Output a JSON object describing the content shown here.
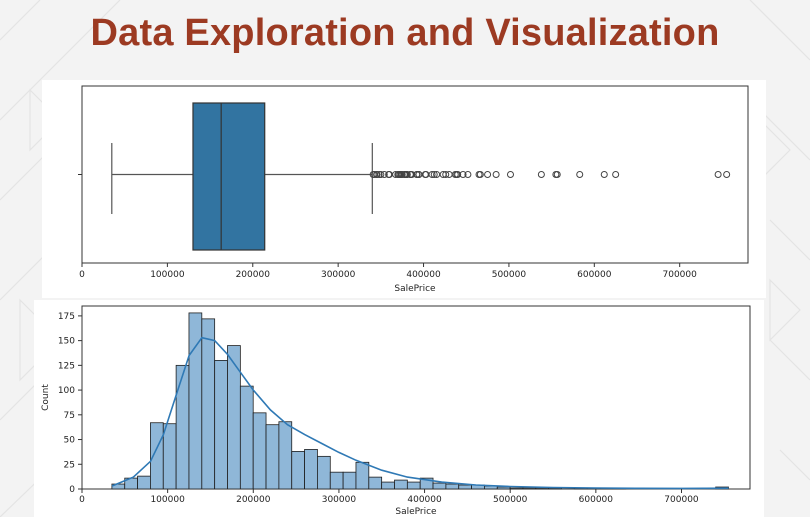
{
  "slide": {
    "title": "Data Exploration and Visualization"
  },
  "colors": {
    "title": "#9c3a22",
    "box_fill": "#3274a1",
    "hist_fill": "#8fb7d8",
    "hist_edge": "#1f1f1f",
    "kde_line": "#2f79b5"
  },
  "chart_data": [
    {
      "type": "box",
      "xlabel": "SalePrice",
      "xlim": [
        0,
        780000
      ],
      "xticks": [
        {
          "value": 0,
          "label": "0"
        },
        {
          "value": 100000,
          "label": "100000"
        },
        {
          "value": 200000,
          "label": "200000"
        },
        {
          "value": 300000,
          "label": "300000"
        },
        {
          "value": 400000,
          "label": "400000"
        },
        {
          "value": 500000,
          "label": "500000"
        },
        {
          "value": 600000,
          "label": "600000"
        },
        {
          "value": 700000,
          "label": "700000"
        }
      ],
      "whisker_low": 34900,
      "q1": 129975,
      "median": 163000,
      "q3": 214000,
      "whisker_high": 340000,
      "outliers": [
        341000,
        342643,
        345000,
        345474,
        348000,
        350000,
        354000,
        359100,
        360000,
        367294,
        369900,
        370878,
        372402,
        372500,
        374000,
        375000,
        377426,
        378500,
        380000,
        381000,
        384500,
        385000,
        386250,
        392000,
        392500,
        394432,
        394617,
        402000,
        402861,
        410000,
        412500,
        415298,
        423000,
        426000,
        430000,
        437154,
        438780,
        440000,
        446261,
        451950,
        465000,
        466500,
        475000,
        485000,
        501837,
        538000,
        555000,
        556581,
        582933,
        611657,
        625000,
        745000,
        755000
      ],
      "grid": false
    },
    {
      "type": "histogram",
      "xlabel": "SalePrice",
      "ylabel": "Count",
      "xlim": [
        0,
        780000
      ],
      "ylim": [
        0,
        185
      ],
      "xticks": [
        {
          "value": 0,
          "label": "0"
        },
        {
          "value": 100000,
          "label": "100000"
        },
        {
          "value": 200000,
          "label": "200000"
        },
        {
          "value": 300000,
          "label": "300000"
        },
        {
          "value": 400000,
          "label": "400000"
        },
        {
          "value": 500000,
          "label": "500000"
        },
        {
          "value": 600000,
          "label": "600000"
        },
        {
          "value": 700000,
          "label": "700000"
        }
      ],
      "yticks": [
        0,
        25,
        50,
        75,
        100,
        125,
        150,
        175
      ],
      "bin_start": 34900,
      "bin_width": 15000,
      "counts": [
        5,
        11,
        13,
        67,
        66,
        125,
        178,
        172,
        130,
        145,
        104,
        77,
        65,
        68,
        38,
        40,
        33,
        17,
        17,
        27,
        12,
        7,
        9,
        7,
        11,
        6,
        5,
        4,
        4,
        3,
        2,
        1,
        1,
        1,
        1,
        0,
        1,
        1,
        1,
        1,
        0,
        0,
        0,
        0,
        0,
        0,
        0,
        2
      ],
      "kde": {
        "x": [
          35000,
          60000,
          80000,
          95000,
          110000,
          125000,
          140000,
          155000,
          170000,
          185000,
          200000,
          220000,
          240000,
          260000,
          280000,
          300000,
          320000,
          350000,
          380000,
          420000,
          460000,
          500000,
          550000,
          600000,
          650000,
          700000,
          755000
        ],
        "y": [
          3,
          12,
          28,
          55,
          95,
          135,
          153,
          150,
          136,
          118,
          100,
          80,
          65,
          55,
          46,
          37,
          29,
          19,
          12,
          7,
          4,
          2.5,
          1.5,
          1,
          0.7,
          0.6,
          0.8
        ]
      },
      "grid": false
    }
  ]
}
